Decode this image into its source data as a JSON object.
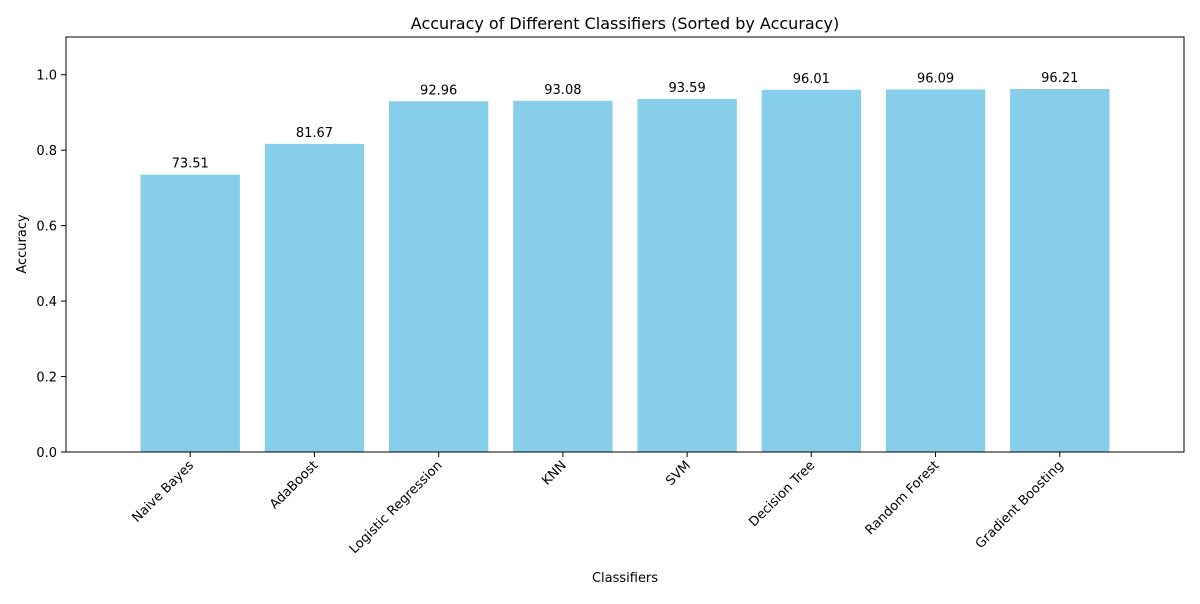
{
  "chart_data": {
    "type": "bar",
    "title": "Accuracy of Different Classifiers (Sorted by Accuracy)",
    "xlabel": "Classifiers",
    "ylabel": "Accuracy",
    "categories": [
      "Naive Bayes",
      "AdaBoost",
      "Logistic Regression",
      "KNN",
      "SVM",
      "Decision Tree",
      "Random Forest",
      "Gradient Boosting"
    ],
    "values": [
      0.7351,
      0.8167,
      0.9296,
      0.9308,
      0.9359,
      0.9601,
      0.9609,
      0.9621
    ],
    "data_labels": [
      "73.51",
      "81.67",
      "92.96",
      "93.08",
      "93.59",
      "96.01",
      "96.09",
      "96.21"
    ],
    "ylim": [
      0,
      1.1
    ],
    "yticks": [
      0.0,
      0.2,
      0.4,
      0.6,
      0.8,
      1.0
    ],
    "ytick_labels": [
      "0.0",
      "0.2",
      "0.4",
      "0.6",
      "0.8",
      "1.0"
    ],
    "grid": false,
    "legend": "none",
    "bar_color": "#87CEEB"
  }
}
